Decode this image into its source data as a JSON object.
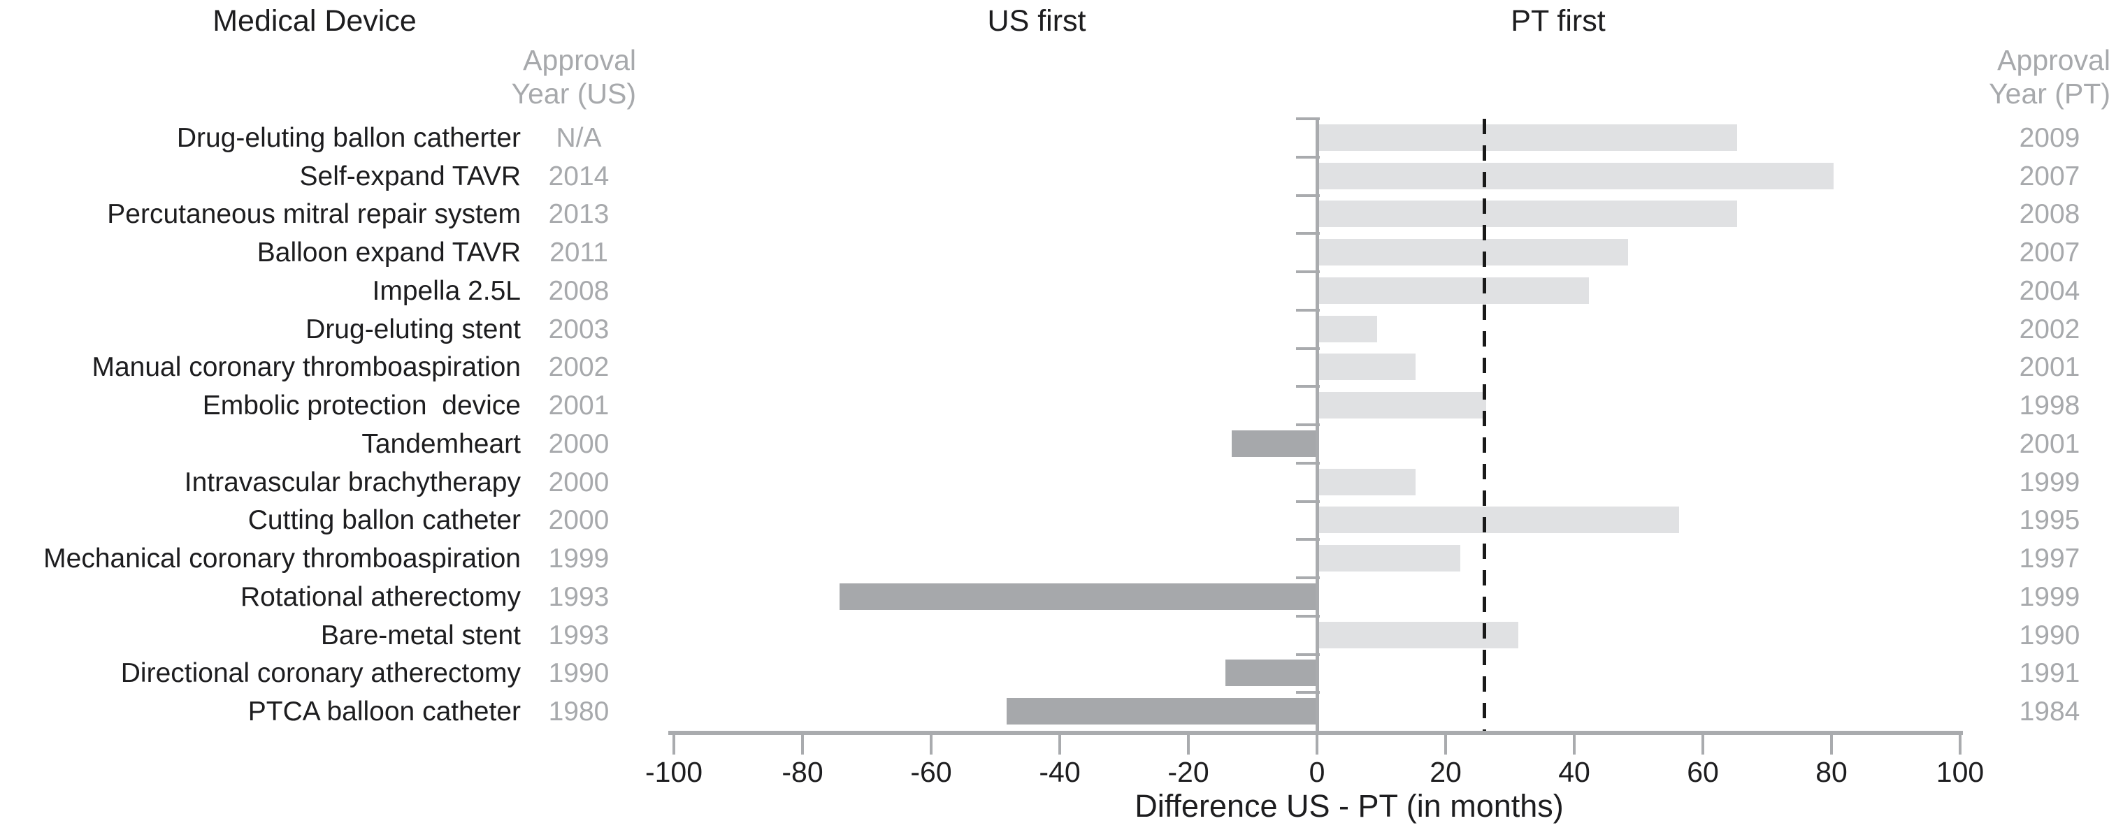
{
  "header": {
    "medical_device": "Medical Device",
    "us_first": "US first",
    "pt_first": "PT first",
    "approval_us_line1": "Approval",
    "approval_us_line2": "Year (US)",
    "approval_pt_line1": "Approval",
    "approval_pt_line2": "Year (PT)"
  },
  "chart_data": {
    "type": "bar",
    "orientation": "horizontal",
    "title": "",
    "xlabel": "Difference US - PT (in months)",
    "xlim": [
      -100,
      100
    ],
    "x_ticks": [
      -100,
      -80,
      -60,
      -40,
      -20,
      0,
      20,
      40,
      60,
      80,
      100
    ],
    "grid": false,
    "reference_line_months": 26,
    "region_labels": {
      "negative_side": "US first",
      "positive_side": "PT first"
    },
    "rows": [
      {
        "device": "Drug-eluting ballon catherter",
        "us_year": "N/A",
        "pt_year": "2009",
        "diff_months": 65
      },
      {
        "device": "Self-expand TAVR",
        "us_year": "2014",
        "pt_year": "2007",
        "diff_months": 80
      },
      {
        "device": "Percutaneous mitral repair system",
        "us_year": "2013",
        "pt_year": "2008",
        "diff_months": 65
      },
      {
        "device": "Balloon expand TAVR",
        "us_year": "2011",
        "pt_year": "2007",
        "diff_months": 48
      },
      {
        "device": "Impella 2.5L",
        "us_year": "2008",
        "pt_year": "2004",
        "diff_months": 42
      },
      {
        "device": "Drug-eluting stent",
        "us_year": "2003",
        "pt_year": "2002",
        "diff_months": 9
      },
      {
        "device": "Manual coronary thromboaspiration",
        "us_year": "2002",
        "pt_year": "2001",
        "diff_months": 15
      },
      {
        "device": "Embolic protection  device",
        "us_year": "2001",
        "pt_year": "1998",
        "diff_months": 26
      },
      {
        "device": "Tandemheart",
        "us_year": "2000",
        "pt_year": "2001",
        "diff_months": -13
      },
      {
        "device": "Intravascular brachytherapy",
        "us_year": "2000",
        "pt_year": "1999",
        "diff_months": 15
      },
      {
        "device": "Cutting ballon catheter",
        "us_year": "2000",
        "pt_year": "1995",
        "diff_months": 56
      },
      {
        "device": "Mechanical coronary thromboaspiration",
        "us_year": "1999",
        "pt_year": "1997",
        "diff_months": 22
      },
      {
        "device": "Rotational atherectomy",
        "us_year": "1993",
        "pt_year": "1999",
        "diff_months": -74
      },
      {
        "device": "Bare-metal stent",
        "us_year": "1993",
        "pt_year": "1990",
        "diff_months": 31
      },
      {
        "device": "Directional coronary atherectomy",
        "us_year": "1990",
        "pt_year": "1991",
        "diff_months": -14
      },
      {
        "device": "PTCA balloon catheter",
        "us_year": "1980",
        "pt_year": "1984",
        "diff_months": -48
      }
    ],
    "colors": {
      "positive_bar": "#e0e1e3",
      "negative_bar": "#a6a8ab",
      "axis": "#a9abae",
      "reference_line": "#1a1a1a",
      "black_text": "#1d1d1f",
      "gray_text": "#a7a9ac"
    }
  }
}
